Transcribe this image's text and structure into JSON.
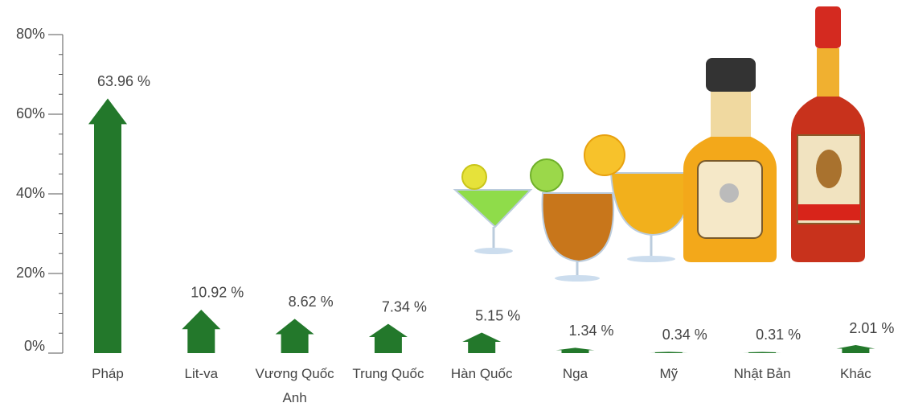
{
  "chart_data": {
    "type": "arrow-bar",
    "categories": [
      "Pháp",
      "Lit-va",
      "Vương Quốc Anh",
      "Trung Quốc",
      "Hàn Quốc",
      "Nga",
      "Mỹ",
      "Nhật Bản",
      "Khác"
    ],
    "values": [
      63.96,
      10.92,
      8.62,
      7.34,
      5.15,
      1.34,
      0.34,
      0.31,
      2.01
    ],
    "value_labels": [
      "63.96 %",
      "10.92 %",
      "8.62 %",
      "7.34 %",
      "5.15 %",
      "1.34 %",
      "0.34 %",
      "0.31 %",
      "2.01 %"
    ],
    "color": "#23782b",
    "ylim": [
      0,
      80
    ],
    "yticks": [
      {
        "value": 0,
        "label": "0%"
      },
      {
        "value": 20,
        "label": "20%"
      },
      {
        "value": 40,
        "label": "40%"
      },
      {
        "value": 60,
        "label": "60%"
      },
      {
        "value": 80,
        "label": "80%"
      }
    ],
    "minor_yticks": [
      5,
      10,
      15,
      25,
      30,
      35,
      45,
      50,
      55,
      65,
      70,
      75
    ]
  }
}
